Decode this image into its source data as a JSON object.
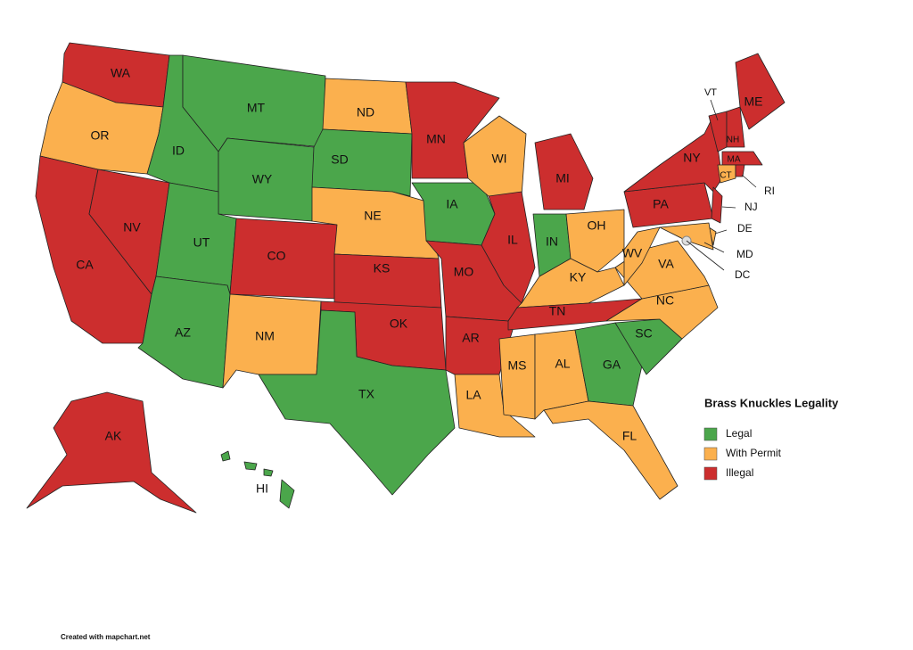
{
  "legend": {
    "title": "Brass Knuckles Legality",
    "items": [
      {
        "label": "Legal",
        "color": "#4ba64b"
      },
      {
        "label": "With Permit",
        "color": "#fbb04e"
      },
      {
        "label": "Illegal",
        "color": "#cc2e2e"
      }
    ]
  },
  "states": [
    {
      "label": "WA",
      "status": "Illegal"
    },
    {
      "label": "OR",
      "status": "With Permit"
    },
    {
      "label": "CA",
      "status": "Illegal"
    },
    {
      "label": "NV",
      "status": "Illegal"
    },
    {
      "label": "ID",
      "status": "Legal"
    },
    {
      "label": "MT",
      "status": "Legal"
    },
    {
      "label": "WY",
      "status": "Legal"
    },
    {
      "label": "UT",
      "status": "Legal"
    },
    {
      "label": "AZ",
      "status": "Legal"
    },
    {
      "label": "CO",
      "status": "Illegal"
    },
    {
      "label": "NM",
      "status": "With Permit"
    },
    {
      "label": "ND",
      "status": "With Permit"
    },
    {
      "label": "SD",
      "status": "Legal"
    },
    {
      "label": "NE",
      "status": "With Permit"
    },
    {
      "label": "KS",
      "status": "Illegal"
    },
    {
      "label": "OK",
      "status": "Illegal"
    },
    {
      "label": "TX",
      "status": "Legal"
    },
    {
      "label": "MN",
      "status": "Illegal"
    },
    {
      "label": "IA",
      "status": "Legal"
    },
    {
      "label": "MO",
      "status": "Illegal"
    },
    {
      "label": "AR",
      "status": "Illegal"
    },
    {
      "label": "LA",
      "status": "With Permit"
    },
    {
      "label": "WI",
      "status": "With Permit"
    },
    {
      "label": "IL",
      "status": "Illegal"
    },
    {
      "label": "MI",
      "status": "Illegal"
    },
    {
      "label": "IN",
      "status": "Legal"
    },
    {
      "label": "OH",
      "status": "With Permit"
    },
    {
      "label": "KY",
      "status": "With Permit"
    },
    {
      "label": "TN",
      "status": "Illegal"
    },
    {
      "label": "MS",
      "status": "With Permit"
    },
    {
      "label": "AL",
      "status": "With Permit"
    },
    {
      "label": "GA",
      "status": "Legal"
    },
    {
      "label": "FL",
      "status": "With Permit"
    },
    {
      "label": "SC",
      "status": "Legal"
    },
    {
      "label": "NC",
      "status": "With Permit"
    },
    {
      "label": "VA",
      "status": "With Permit"
    },
    {
      "label": "WV",
      "status": "With Permit"
    },
    {
      "label": "PA",
      "status": "Illegal"
    },
    {
      "label": "NY",
      "status": "Illegal"
    },
    {
      "label": "NJ",
      "status": "Illegal"
    },
    {
      "label": "DE",
      "status": "With Permit"
    },
    {
      "label": "MD",
      "status": "With Permit"
    },
    {
      "label": "VT",
      "status": "Illegal"
    },
    {
      "label": "NH",
      "status": "Illegal"
    },
    {
      "label": "ME",
      "status": "Illegal"
    },
    {
      "label": "MA",
      "status": "Illegal"
    },
    {
      "label": "CT",
      "status": "With Permit"
    },
    {
      "label": "RI",
      "status": "Illegal"
    },
    {
      "label": "AK",
      "status": "Illegal"
    },
    {
      "label": "HI",
      "status": "Legal"
    },
    {
      "label": "DC"
    }
  ],
  "footer": "Created with mapchart.net"
}
